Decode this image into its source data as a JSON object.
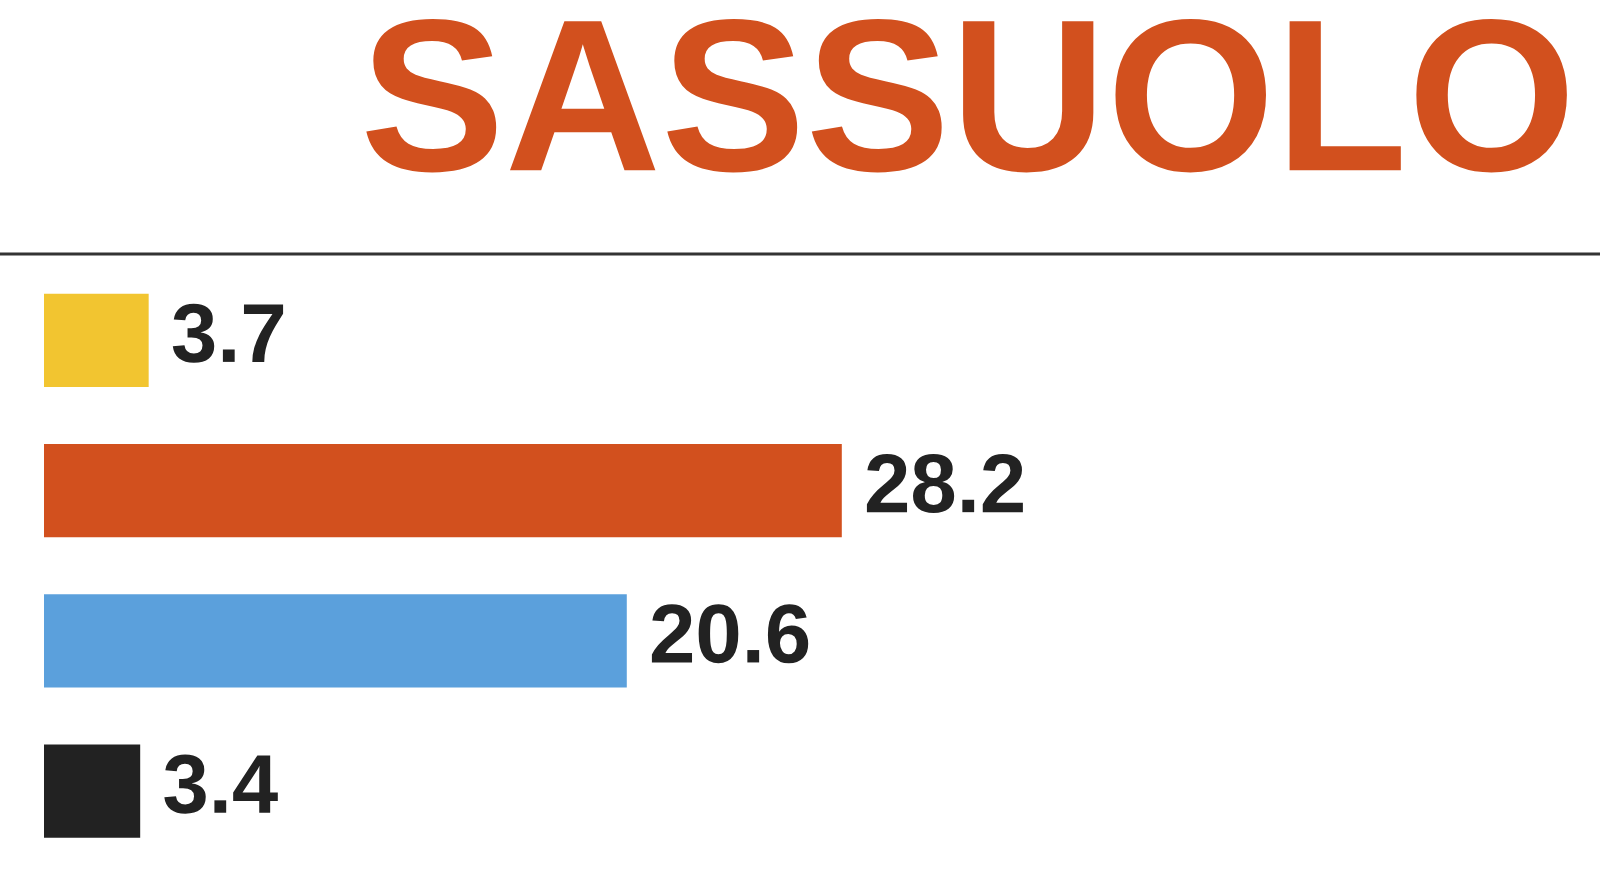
{
  "chart_data": {
    "type": "bar",
    "orientation": "horizontal",
    "title": "SASSUOLO",
    "categories": [
      null,
      null,
      null,
      null
    ],
    "values": [
      3.7,
      28.2,
      20.6,
      3.4
    ],
    "colors": [
      "#f2c530",
      "#d2501e",
      "#5ba0dc",
      "#222222"
    ],
    "xlim": [
      0,
      55
    ],
    "grid": false,
    "legend": false,
    "data_labels": true
  }
}
